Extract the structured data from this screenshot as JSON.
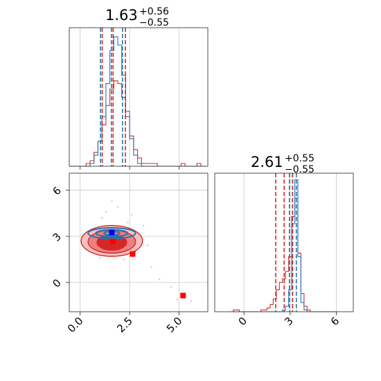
{
  "chart_data": {
    "type": "corner",
    "colors": {
      "blue": "#1f77b4",
      "red": "#d62728",
      "grid": "#c8c8c8"
    },
    "titles": {
      "param1": {
        "value": "1.63",
        "upper": "+0.56",
        "lower": "−0.55"
      },
      "param2": {
        "value": "2.61",
        "upper": "+0.55",
        "lower": "−0.55"
      }
    },
    "panels": {
      "hist1": {
        "xlim": [
          -0.55,
          6.45
        ],
        "grid_x": [
          0,
          2.5,
          5
        ],
        "bins": [
          -0.5,
          -0.3,
          -0.1,
          0.1,
          0.3,
          0.5,
          0.7,
          0.9,
          1.1,
          1.3,
          1.5,
          1.7,
          1.9,
          2.1,
          2.3,
          2.5,
          2.7,
          2.9,
          3.1,
          3.3,
          3.5,
          3.7,
          3.9,
          4.1,
          4.3,
          4.5,
          4.7,
          4.9,
          5.1,
          5.3,
          5.5,
          5.7,
          5.9,
          6.1,
          6.3
        ],
        "blue_counts": [
          0,
          0,
          0,
          0,
          0,
          1,
          4,
          9,
          18,
          30,
          42,
          47,
          44,
          33,
          20,
          10,
          4,
          1,
          0,
          0,
          0,
          0,
          0,
          0,
          0,
          0,
          0,
          0,
          0,
          0,
          0,
          0,
          0,
          0
        ],
        "red_counts": [
          0,
          0,
          0,
          0,
          1,
          2,
          5,
          9,
          15,
          22,
          28,
          31,
          30,
          25,
          18,
          11,
          6,
          3,
          1,
          1,
          1,
          1,
          0,
          0,
          0,
          0,
          0,
          0,
          1,
          0,
          0,
          0,
          1,
          0
        ],
        "blue_quantiles": [
          1.08,
          1.63,
          2.19
        ],
        "red_quantiles": [
          1.08,
          1.63,
          2.25
        ]
      },
      "scatter": {
        "xlim": [
          -0.55,
          6.45
        ],
        "ylim": [
          -1.9,
          7.1
        ],
        "xticks": [
          0.0,
          2.5,
          5.0
        ],
        "xtick_labels": [
          "0.0",
          "2.5",
          "5.0"
        ],
        "yticks": [
          0,
          3,
          6
        ],
        "ytick_labels": [
          "0",
          "3",
          "6"
        ],
        "blue_contours": [
          {
            "cx": 1.6,
            "cy": 3.2,
            "rx": 1.2,
            "ry": 0.35
          },
          {
            "cx": 1.6,
            "cy": 3.2,
            "rx": 0.8,
            "ry": 0.22
          },
          {
            "cx": 1.6,
            "cy": 3.2,
            "rx": 0.4,
            "ry": 0.12
          }
        ],
        "red_contours": [
          {
            "cx": 1.6,
            "cy": 2.7,
            "rx": 1.55,
            "ry": 1.0
          },
          {
            "cx": 1.6,
            "cy": 2.65,
            "rx": 1.2,
            "ry": 0.75
          },
          {
            "cx": 1.6,
            "cy": 2.6,
            "rx": 0.75,
            "ry": 0.5
          }
        ],
        "blue_marker": [
          1.6,
          3.25
        ],
        "red_markers": [
          [
            1.65,
            2.65
          ],
          [
            2.65,
            1.85
          ],
          [
            5.2,
            -0.85
          ]
        ],
        "red_scatter": [
          [
            0.6,
            2.2
          ],
          [
            0.9,
            3.6
          ],
          [
            1.1,
            4.2
          ],
          [
            2.4,
            3.9
          ],
          [
            2.8,
            2.0
          ],
          [
            3.0,
            2.6
          ],
          [
            0.5,
            3.3
          ],
          [
            2.6,
            4.4
          ],
          [
            1.3,
            4.6
          ],
          [
            3.2,
            3.7
          ],
          [
            1.9,
            4.9
          ],
          [
            0.3,
            2.7
          ],
          [
            4.6,
            -0.3
          ],
          [
            3.6,
            1.0
          ],
          [
            4.9,
            -1.1
          ],
          [
            1.0,
            1.6
          ],
          [
            2.2,
            1.5
          ],
          [
            0.8,
            1.9
          ],
          [
            4.0,
            0.2
          ],
          [
            5.6,
            -1.2
          ],
          [
            3.4,
            2.4
          ],
          [
            0.4,
            3.1
          ],
          [
            2.9,
            3.2
          ],
          [
            1.6,
            5.3
          ]
        ]
      },
      "hist2": {
        "xlim": [
          -1.9,
          7.1
        ],
        "xticks": [
          0,
          3,
          6
        ],
        "xtick_labels": [
          "0",
          "3",
          "6"
        ],
        "bins": [
          -0.9,
          -0.7,
          -0.5,
          -0.3,
          -0.1,
          0.1,
          0.3,
          0.5,
          0.7,
          0.9,
          1.1,
          1.3,
          1.5,
          1.7,
          1.9,
          2.1,
          2.3,
          2.5,
          2.7,
          2.9,
          3.1,
          3.3,
          3.5,
          3.7,
          3.9,
          4.1,
          4.3,
          4.5,
          4.7,
          4.9,
          5.1,
          5.3,
          5.5,
          5.7,
          5.9,
          6.1
        ],
        "blue_counts": [
          0,
          0,
          0,
          0,
          0,
          0,
          0,
          0,
          0,
          0,
          0,
          0,
          0,
          0,
          0,
          0,
          0,
          1,
          3,
          12,
          48,
          72,
          30,
          5,
          1,
          0,
          0,
          0,
          0,
          0,
          0,
          0,
          0,
          0,
          0
        ],
        "red_counts": [
          0,
          1,
          1,
          0,
          0,
          0,
          0,
          0,
          0,
          0,
          1,
          1,
          2,
          4,
          7,
          12,
          16,
          18,
          22,
          30,
          52,
          62,
          32,
          10,
          3,
          1,
          0,
          0,
          0,
          0,
          0,
          0,
          0,
          0,
          0
        ],
        "blue_quantiles": [
          2.95,
          3.15,
          3.4
        ],
        "red_quantiles": [
          2.06,
          2.61,
          3.16
        ]
      }
    }
  }
}
